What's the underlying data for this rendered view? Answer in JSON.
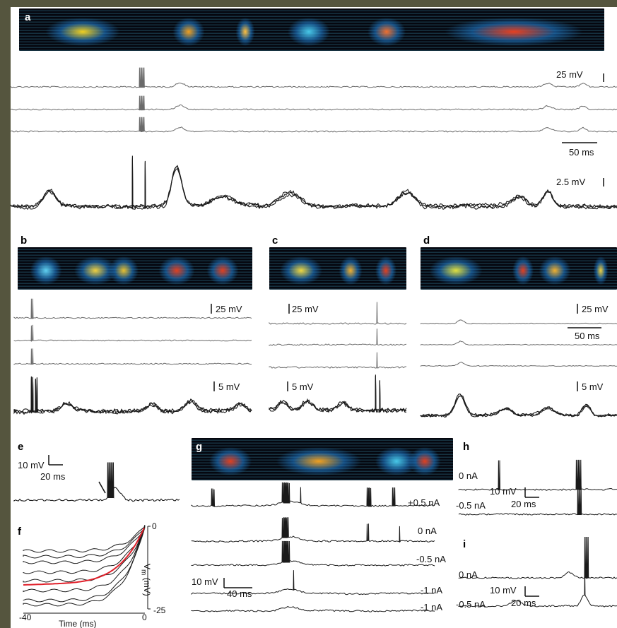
{
  "panels": {
    "a": {
      "label": "a",
      "scale_v1": "25 mV",
      "scale_t": "50 ms",
      "scale_v2": "2.5 mV"
    },
    "b": {
      "label": "b",
      "scale_v1": "25 mV",
      "scale_v2": "5 mV"
    },
    "c": {
      "label": "c",
      "scale_v1": "25 mV",
      "scale_v2": "5 mV"
    },
    "d": {
      "label": "d",
      "scale_v1": "25 mV",
      "scale_t": "50 ms",
      "scale_v2": "5 mV"
    },
    "e": {
      "label": "e",
      "scale_v": "10 mV",
      "scale_t": "20 ms"
    },
    "f": {
      "label": "f",
      "ylabel": "V",
      "ylabel_sub": "m",
      "ylabel_unit": " (mV)",
      "xlabel": "Time (ms)",
      "yticks": [
        "0",
        "-25"
      ],
      "xticks": [
        "-40",
        "0"
      ]
    },
    "g": {
      "label": "g",
      "currents": [
        "+0.5 nA",
        "0 nA",
        "-0.5 nA",
        "-1 nA",
        "-1 nA"
      ],
      "scale_v": "10 mV",
      "scale_t": "40 ms"
    },
    "h": {
      "label": "h",
      "currents": [
        "0 nA",
        "-0.5 nA"
      ],
      "scale_v": "10 mV",
      "scale_t": "20 ms"
    },
    "i": {
      "label": "i",
      "currents": [
        "0 nA",
        "-0.5 nA"
      ],
      "scale_v": "10 mV",
      "scale_t": "20 ms"
    }
  },
  "colors": {
    "frame": "#55553e",
    "trace_light": "#6a6a6a",
    "trace_dark": "#1a1a1a",
    "highlight": "#e0202a"
  }
}
